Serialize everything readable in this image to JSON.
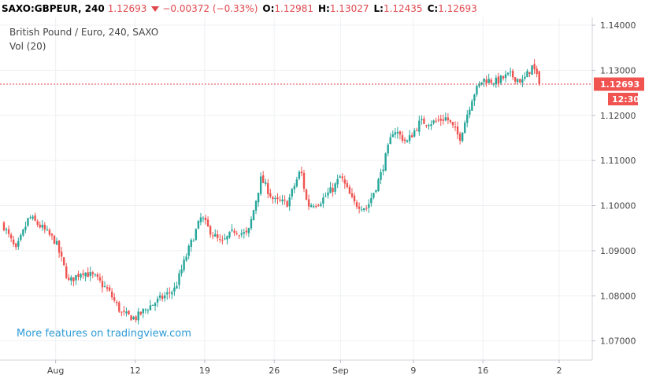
{
  "header": {
    "symbol": "SAXO:GBPEUR, 240",
    "last": "1.12693",
    "change": "−0.00372 (−0.33%)",
    "open_label": "O:",
    "open_value": "1.12981",
    "high_label": "H:",
    "high_value": "1.13027",
    "low_label": "L:",
    "low_value": "1.12435",
    "close_label": "C:",
    "close_value": "1.12693"
  },
  "legend": {
    "title": "British Pound / Euro, 240, SAXO",
    "volume": "Vol (20)"
  },
  "watermark": "More features on tradingview.com",
  "badges": {
    "price": "1.12693",
    "countdown": "12:30"
  },
  "colors": {
    "up": "#26a69a",
    "down": "#ef5350",
    "grid": "#eef0f3",
    "priceline": "#e0474c",
    "badge": "#f05350"
  },
  "icons": {
    "change_direction": "triangle-down-icon"
  },
  "chart_data": {
    "type": "candlestick",
    "title": "British Pound / Euro, 240, SAXO",
    "xlim": [
      -0.2,
      44.5
    ],
    "ylim": [
      1.06575,
      1.14175
    ],
    "yticks": [
      "1.14000",
      "1.13000",
      "1.12000",
      "1.11000",
      "1.10000",
      "1.09000",
      "1.08000",
      "1.07000"
    ],
    "xticks": [
      {
        "label": "Aug",
        "x": 4.0
      },
      {
        "label": "12",
        "x": 10.0
      },
      {
        "label": "19",
        "x": 15.25
      },
      {
        "label": "26",
        "x": 20.5
      },
      {
        "label": "Sep",
        "x": 25.5
      },
      {
        "label": "9",
        "x": 31.0
      },
      {
        "label": "16",
        "x": 36.25
      },
      {
        "label": "2",
        "x": 42.0
      }
    ],
    "last_price": 1.12693,
    "series": [
      {
        "x": 0.0,
        "close": 1.096
      },
      {
        "x": 1.0,
        "close": 1.09
      },
      {
        "x": 2.0,
        "close": 1.0975
      },
      {
        "x": 3.0,
        "close": 1.095
      },
      {
        "x": 4.0,
        "close": 1.092
      },
      {
        "x": 5.0,
        "close": 1.083
      },
      {
        "x": 6.0,
        "close": 1.0855
      },
      {
        "x": 7.0,
        "close": 1.084
      },
      {
        "x": 8.0,
        "close": 1.081
      },
      {
        "x": 9.0,
        "close": 1.076
      },
      {
        "x": 10.0,
        "close": 1.075
      },
      {
        "x": 11.0,
        "close": 1.0775
      },
      {
        "x": 12.0,
        "close": 1.0795
      },
      {
        "x": 13.0,
        "close": 1.0815
      },
      {
        "x": 14.0,
        "close": 1.09
      },
      {
        "x": 15.0,
        "close": 1.0975
      },
      {
        "x": 15.5,
        "close": 1.095
      },
      {
        "x": 16.5,
        "close": 1.0915
      },
      {
        "x": 17.5,
        "close": 1.0945
      },
      {
        "x": 18.5,
        "close": 1.0935
      },
      {
        "x": 19.5,
        "close": 1.106
      },
      {
        "x": 20.5,
        "close": 1.101
      },
      {
        "x": 21.5,
        "close": 1.1005
      },
      {
        "x": 22.5,
        "close": 1.108
      },
      {
        "x": 23.0,
        "close": 1.1
      },
      {
        "x": 24.0,
        "close": 1.101
      },
      {
        "x": 25.0,
        "close": 1.104
      },
      {
        "x": 25.5,
        "close": 1.1065
      },
      {
        "x": 26.5,
        "close": 1.1005
      },
      {
        "x": 27.5,
        "close": 1.0995
      },
      {
        "x": 28.5,
        "close": 1.1065
      },
      {
        "x": 29.5,
        "close": 1.117
      },
      {
        "x": 30.5,
        "close": 1.114
      },
      {
        "x": 31.5,
        "close": 1.1185
      },
      {
        "x": 32.5,
        "close": 1.1185
      },
      {
        "x": 33.5,
        "close": 1.1195
      },
      {
        "x": 34.5,
        "close": 1.115
      },
      {
        "x": 35.5,
        "close": 1.1245
      },
      {
        "x": 36.25,
        "close": 1.128
      },
      {
        "x": 37.25,
        "close": 1.1275
      },
      {
        "x": 38.25,
        "close": 1.129
      },
      {
        "x": 39.25,
        "close": 1.1275
      },
      {
        "x": 40.0,
        "close": 1.131
      },
      {
        "x": 40.5,
        "close": 1.1269
      }
    ]
  }
}
